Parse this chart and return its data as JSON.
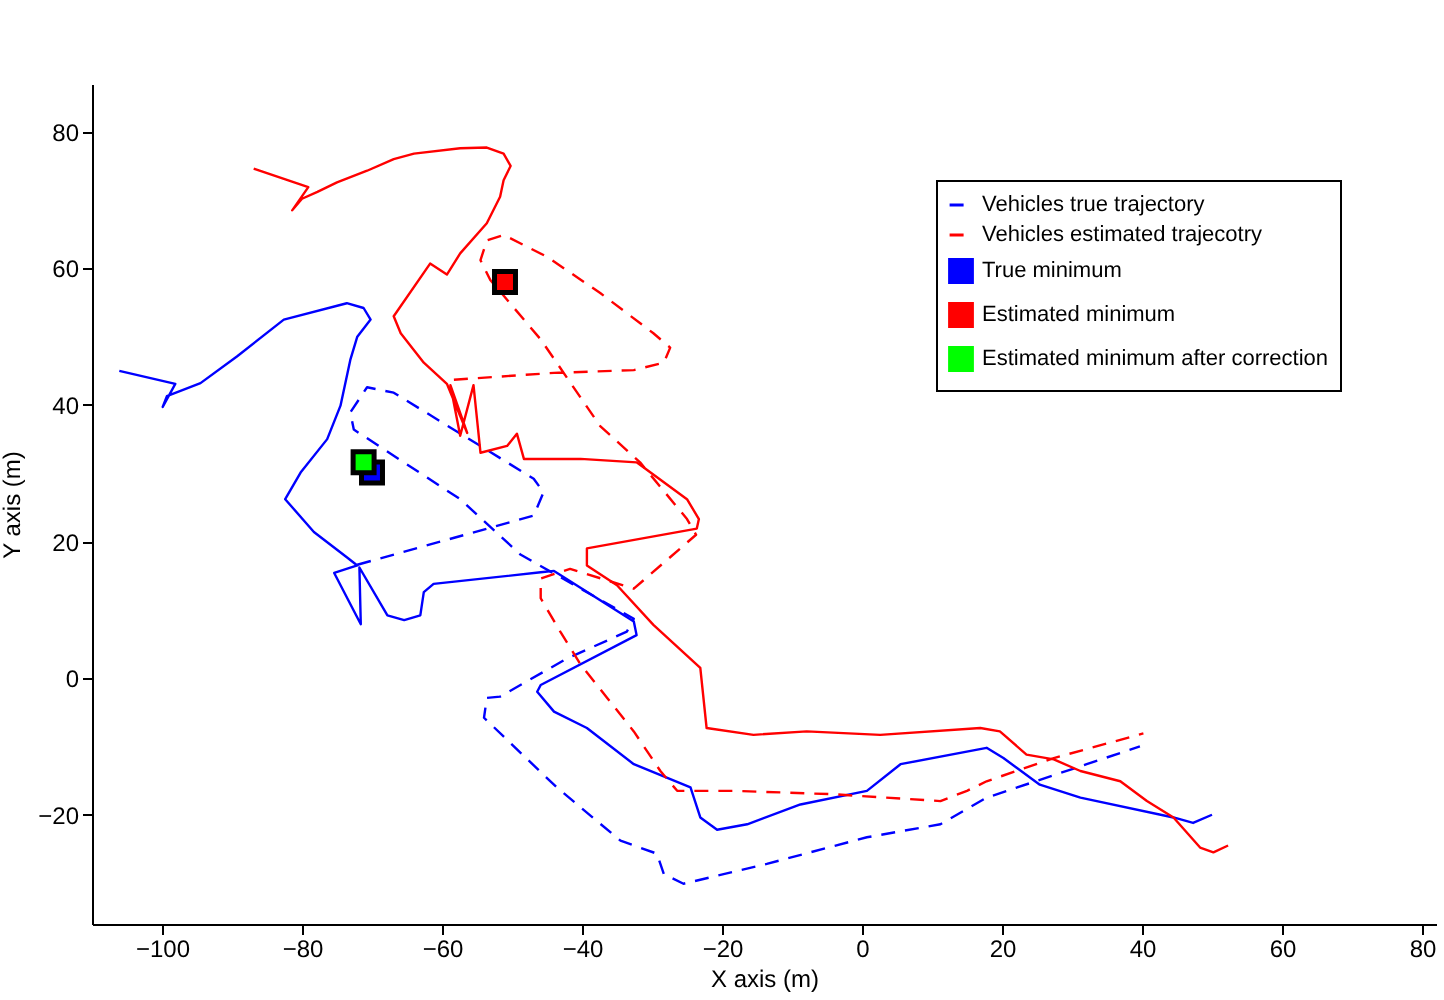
{
  "chart_data": {
    "type": "line",
    "xlabel": "X axis (m)",
    "ylabel": "Y axis (m)",
    "xlim": [
      -110,
      82
    ],
    "xticks": [
      -100,
      -80,
      -60,
      -40,
      -20,
      0,
      20,
      40,
      60,
      80
    ],
    "ylim": [
      -36,
      87
    ],
    "yticks": [
      -20,
      0,
      20,
      40,
      60,
      80
    ],
    "legend": "top right",
    "series": [
      {
        "name": "Vehicles true trajectory",
        "color": "#0000ff",
        "line_style": "dashed",
        "x": [
          -72.1,
          -46.9,
          -45.5,
          -46.9,
          -66.9,
          -70.7,
          -73.1,
          -72.6,
          -57.4,
          -48.8,
          -32.6,
          -33.6,
          -42.1,
          -51.7,
          -53.6,
          -54.0,
          -43.6,
          -34.5,
          -29.3,
          -28.3,
          -25.5,
          -13.6,
          0.7,
          11.2,
          17.8,
          32.1,
          39.7
        ],
        "values": [
          16.6,
          23.8,
          27.2,
          29.2,
          41.8,
          42.6,
          38.9,
          36.4,
          26.2,
          18.1,
          8.7,
          6.8,
          2.9,
          -2.7,
          -2.9,
          -5.8,
          -16.0,
          -23.8,
          -25.7,
          -28.7,
          -30.1,
          -27.2,
          -23.3,
          -21.4,
          -17.5,
          -12.6,
          -10.0
        ]
      },
      {
        "color": "#0000ff",
        "line_style": "solid",
        "x": [
          -106.1,
          -98.1,
          -99.9,
          -99.3,
          -94.5,
          -89.3,
          -82.6,
          -73.6,
          -71.2,
          -70.2,
          -72.1,
          -73.1,
          -74.5,
          -76.4,
          -80.2,
          -82.4,
          -78.3,
          -73.6,
          -72.1,
          -75.4,
          -71.6,
          -71.8,
          -67.8,
          -65.4,
          -63.1,
          -62.6,
          -61.2,
          -45.9,
          -44.0,
          -32.6,
          -32.2,
          -45.9,
          -46.4,
          -44.0,
          -39.3,
          -32.6,
          -24.5,
          -23.1,
          -20.7,
          -16.4,
          -8.8,
          0.7,
          5.5,
          17.8,
          20.2,
          25.4,
          31.2,
          44.5,
          47.3,
          50.0
        ],
        "values": [
          45.0,
          43.1,
          39.7,
          41.3,
          43.2,
          47.1,
          52.5,
          54.9,
          54.2,
          52.5,
          50.0,
          46.6,
          39.9,
          35.0,
          30.1,
          26.2,
          21.4,
          17.7,
          16.5,
          15.4,
          7.9,
          16.2,
          9.2,
          8.5,
          9.2,
          12.6,
          13.8,
          15.5,
          15.7,
          8.3,
          6.3,
          -1.0,
          -2.0,
          -4.9,
          -7.3,
          -12.6,
          -16.0,
          -20.4,
          -22.2,
          -21.4,
          -18.5,
          -16.5,
          -12.6,
          -10.2,
          -11.7,
          -15.6,
          -17.5,
          -20.4,
          -21.2,
          -20.0
        ]
      },
      {
        "name": "Vehicles estimated trajecotry",
        "color": "#ff0000",
        "line_style": "dashed",
        "x": [
          -58.3,
          -44.0,
          -32.6,
          -28.3,
          -27.4,
          -29.8,
          -37.4,
          -45.0,
          -51.2,
          -53.6,
          -54.5,
          -53.1,
          -45.9,
          -37.4,
          -31.7,
          -25.0,
          -23.7,
          -32.6,
          -41.7,
          -45.9,
          -45.9,
          -43.1,
          -40.2,
          -36.4,
          -32.6,
          -28.8,
          -26.4,
          -18.3,
          -4.1,
          11.2,
          15.0,
          17.8,
          27.4,
          40.2
        ],
        "values": [
          43.7,
          44.7,
          45.1,
          46.2,
          48.4,
          50.5,
          56.4,
          61.7,
          64.9,
          64.1,
          61.2,
          58.3,
          49.6,
          36.9,
          31.6,
          23.3,
          21.0,
          13.1,
          16.0,
          14.6,
          11.7,
          6.8,
          2.0,
          -2.9,
          -7.8,
          -13.6,
          -16.5,
          -16.5,
          -17.0,
          -18.0,
          -16.5,
          -15.1,
          -11.7,
          -8.1
        ]
      },
      {
        "color": "#ff0000",
        "line_style": "solid",
        "x": [
          -86.9,
          -79.1,
          -81.4,
          -80.0,
          -77.8,
          -75.0,
          -70.7,
          -66.9,
          -64.0,
          -57.4,
          -53.6,
          -51.2,
          -50.2,
          -51.2,
          -51.7,
          -53.6,
          -57.4,
          -59.3,
          -61.7,
          -66.9,
          -65.9,
          -62.6,
          -59.3,
          -56.4,
          -58.8,
          -57.4,
          -55.5,
          -54.5,
          -50.7,
          -49.3,
          -48.3,
          -40.2,
          -32.2,
          -25.0,
          -23.3,
          -23.6,
          -39.3,
          -39.3,
          -35.0,
          -29.8,
          -23.1,
          -22.2,
          -15.5,
          -7.9,
          2.6,
          16.9,
          19.7,
          23.5,
          27.4,
          31.2,
          36.9,
          40.7,
          44.5,
          48.3,
          50.2,
          52.3
        ],
        "values": [
          74.6,
          71.9,
          68.5,
          70.2,
          71.2,
          72.6,
          74.3,
          76.0,
          76.8,
          77.6,
          77.7,
          76.8,
          75.0,
          72.9,
          70.5,
          66.6,
          62.2,
          59.1,
          60.7,
          53.0,
          50.5,
          46.2,
          43.1,
          35.9,
          42.9,
          35.5,
          42.9,
          33.0,
          34.0,
          35.8,
          32.1,
          32.1,
          31.6,
          26.2,
          23.3,
          21.9,
          19.0,
          16.5,
          13.6,
          7.8,
          1.5,
          -7.3,
          -8.3,
          -7.8,
          -8.3,
          -7.3,
          -7.8,
          -11.2,
          -11.9,
          -13.6,
          -15.1,
          -18.0,
          -20.4,
          -24.8,
          -25.5,
          -24.5
        ]
      },
      {
        "name": "True minimum",
        "type": "scatter",
        "color": "#0000ff",
        "marker": "square",
        "x": [
          -70.0
        ],
        "values": [
          30.1
        ]
      },
      {
        "name": "Estimated minimum",
        "type": "scatter",
        "color": "#ff0000",
        "marker": "square",
        "x": [
          -51.0
        ],
        "values": [
          58.0
        ]
      },
      {
        "name": "Estimated minimum after correction",
        "type": "scatter",
        "color": "#00ff00",
        "marker": "square",
        "x": [
          -71.2
        ],
        "values": [
          31.6
        ]
      }
    ]
  }
}
